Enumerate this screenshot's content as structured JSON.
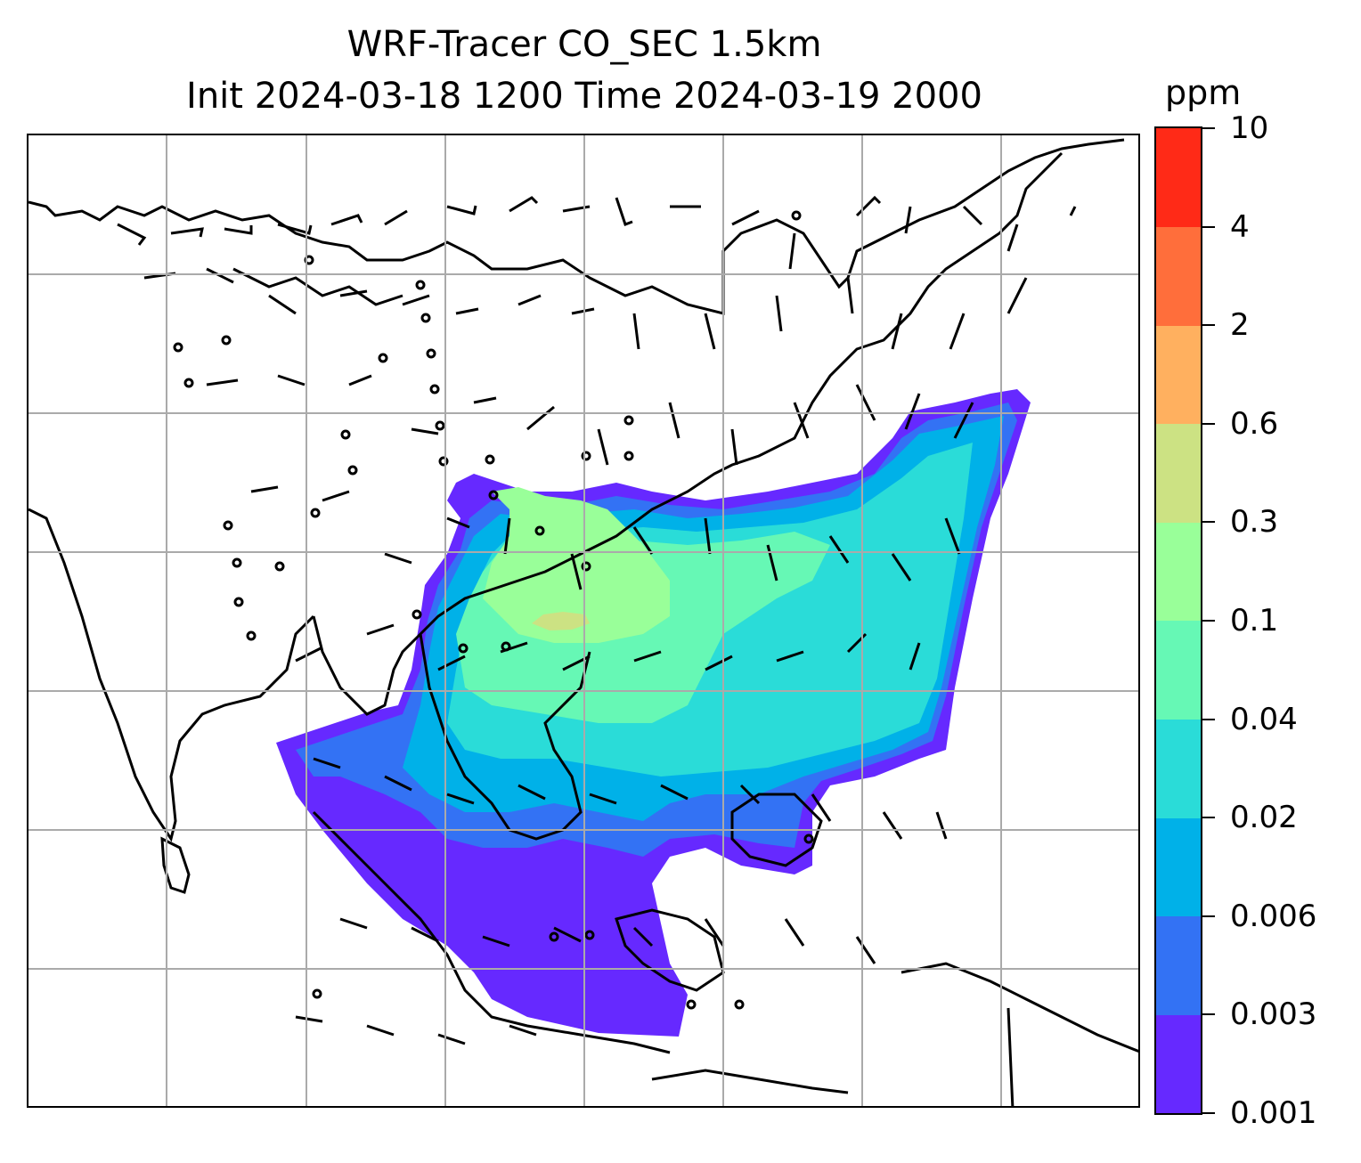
{
  "title": {
    "line1": "WRF-Tracer CO_SEC 1.5km",
    "line2": "Init 2024-03-18 1200 Time 2024-03-19 2000"
  },
  "colorbar": {
    "unit": "ppm",
    "levels": [
      "0.001",
      "0.003",
      "0.006",
      "0.02",
      "0.04",
      "0.1",
      "0.3",
      "0.6",
      "2",
      "4",
      "10"
    ],
    "colors": [
      "#6629ff",
      "#3372f4",
      "#00b1e8",
      "#2adcd8",
      "#66f8b5",
      "#99ff99",
      "#cce283",
      "#ffb05f",
      "#ff6e3b",
      "#ff2a17"
    ]
  },
  "map": {
    "gridlines": true,
    "layers": [
      "coastlines",
      "country borders",
      "CO_SEC tracer concentration",
      "wind barbs"
    ]
  }
}
